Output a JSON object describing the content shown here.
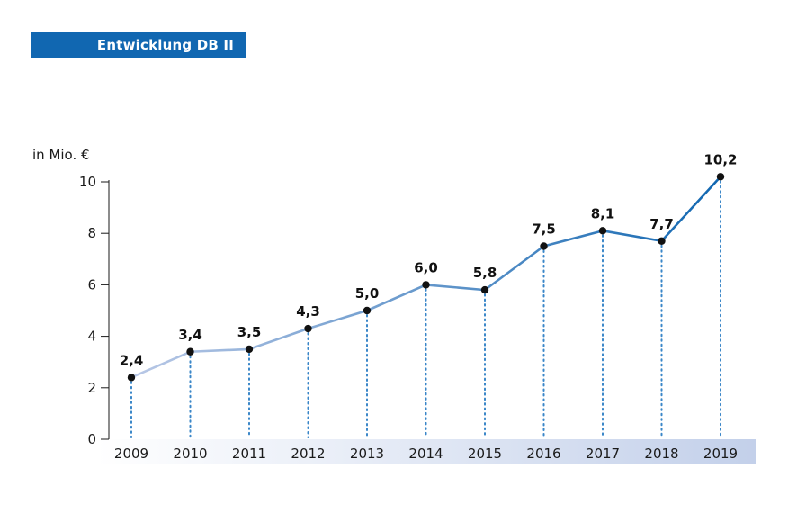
{
  "chart_data": {
    "type": "line",
    "title": "Entwicklung DB II",
    "ylabel": "in Mio. €",
    "xlabel": "",
    "ylim": [
      0,
      10
    ],
    "yticks": [
      "0",
      "2",
      "4",
      "6",
      "8",
      "10"
    ],
    "categories": [
      "2009",
      "2010",
      "2011",
      "2012",
      "2013",
      "2014",
      "2015",
      "2016",
      "2017",
      "2018",
      "2019"
    ],
    "values": [
      2.4,
      3.4,
      3.5,
      4.3,
      5.0,
      6.0,
      5.8,
      7.5,
      8.1,
      7.7,
      10.2
    ],
    "value_labels": [
      "2,4",
      "3,4",
      "3,5",
      "4,3",
      "5,0",
      "6,0",
      "5,8",
      "7,5",
      "8,1",
      "7,7",
      "10,2"
    ],
    "grid": false,
    "line_gradient": [
      "#b9c8e6",
      "#1167b1"
    ],
    "axis_band_gradient": [
      "#ffffff",
      "#c3d0ea"
    ],
    "dotted_drop_color": "#3a86c8",
    "marker_color": "#111111"
  }
}
